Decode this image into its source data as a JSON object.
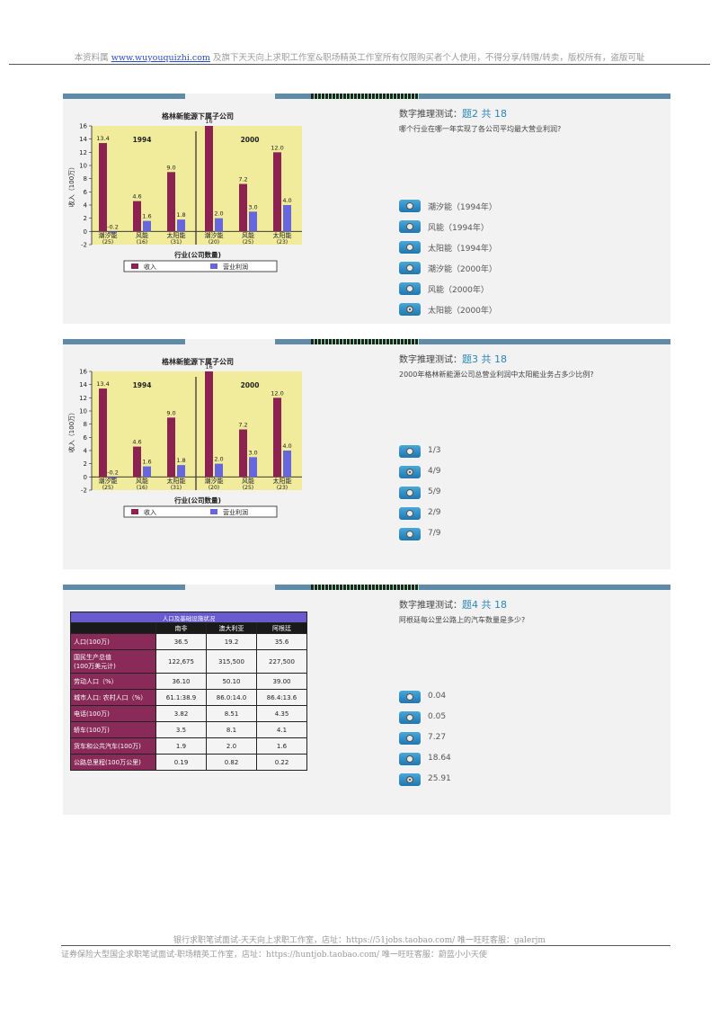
{
  "header": {
    "prefix": "本资料属",
    "link": "www.wuyouquizhi.com",
    "suffix": "及旗下天天向上求职工作室&职场精英工作室所有仅限购买者个人使用，不得分享/转赠/转卖，版权所有，盗版可耻"
  },
  "chart": {
    "title": "格林新能源下属子公司",
    "ylabel": "收入（100万）",
    "xlabel": "行业(公司数量)",
    "legend_income": "收入",
    "legend_profit": "营业利润",
    "y_ticks": [
      "16",
      "14",
      "12",
      "10",
      "8",
      "6",
      "4",
      "2",
      "0",
      "-2"
    ],
    "year_1994": "1994",
    "year_2000": "2000",
    "colors": {
      "income": "#8b2252",
      "profit": "#6666dd",
      "bg": "#f0ec9c"
    }
  },
  "chart_data": {
    "type": "bar",
    "title": "格林新能源下属子公司",
    "xlabel": "行业(公司数量)",
    "ylabel": "收入（100万）",
    "ylim": [
      -2,
      16
    ],
    "categories": [
      "潮汐能",
      "风能",
      "太阳能",
      "潮汐能",
      "风能",
      "太阳能"
    ],
    "category_counts": [
      "(25)",
      "(16)",
      "(31)",
      "(20)",
      "(25)",
      "(23)"
    ],
    "groups": [
      "1994",
      "1994",
      "1994",
      "2000",
      "2000",
      "2000"
    ],
    "series": [
      {
        "name": "收入",
        "values": [
          13.4,
          4.6,
          9.0,
          16,
          7.2,
          12.0
        ],
        "labels": [
          "13.4",
          "4.6",
          "9.0",
          "16",
          "7.2",
          "12.0"
        ]
      },
      {
        "name": "营业利润",
        "values": [
          -0.2,
          1.6,
          1.8,
          2.0,
          3.0,
          4.0
        ],
        "labels": [
          "-0.2",
          "1.6",
          "1.8",
          "2.0",
          "3.0",
          "4.0"
        ]
      }
    ]
  },
  "q2": {
    "title": "数字推理测试：",
    "num": "题2 共 18",
    "text": "哪个行业在哪一年实现了各公司平均最大营业利润?",
    "options": [
      "潮汐能（1994年）",
      "风能（1994年）",
      "太阳能（1994年）",
      "潮汐能（2000年）",
      "风能（2000年）",
      "太阳能（2000年）"
    ],
    "selected": 5
  },
  "q3": {
    "title": "数字推理测试：",
    "num": "题3 共 18",
    "text": "2000年格林新能源公司总营业利润中太阳能业务占多少比例?",
    "options": [
      "1/3",
      "4/9",
      "5/9",
      "2/9",
      "7/9"
    ],
    "selected": 1
  },
  "q4": {
    "title": "数字推理测试：",
    "num": "题4 共 18",
    "text": "阿根廷每公里公路上的汽车数量是多少?",
    "options": [
      "0.04",
      "0.05",
      "7.27",
      "18.64",
      "25.91"
    ],
    "selected": 4
  },
  "table": {
    "caption": "人口及基础设施状况",
    "columns": [
      "南非",
      "澳大利亚",
      "阿根廷"
    ],
    "rows": [
      {
        "label": "人口(100万)",
        "values": [
          "36.5",
          "19.2",
          "35.6"
        ]
      },
      {
        "label": "国民生产总值\n(100万美元计)",
        "values": [
          "122,675",
          "315,500",
          "227,500"
        ]
      },
      {
        "label": "劳动人口（%）",
        "values": [
          "36.10",
          "50.10",
          "39.00"
        ]
      },
      {
        "label": "城市人口: 农村人口（%）",
        "values": [
          "61.1:38.9",
          "86.0:14.0",
          "86.4:13.6"
        ]
      },
      {
        "label": "电话(100万)",
        "values": [
          "3.82",
          "8.51",
          "4.35"
        ]
      },
      {
        "label": "轿车(100万)",
        "values": [
          "3.5",
          "8.1",
          "4.1"
        ]
      },
      {
        "label": "货车和公共汽车(100万)",
        "values": [
          "1.9",
          "2.0",
          "1.6"
        ]
      },
      {
        "label": "公路总里程(100万公里)",
        "values": [
          "0.19",
          "0.82",
          "0.22"
        ]
      }
    ]
  },
  "footer": {
    "line1": "银行求职笔试面试-天天向上求职工作室，店址：https://51jobs.taobao.com/  唯一旺旺客服：galerjm",
    "line2": "证券保险大型国企求职笔试面试-职场精英工作室，店址：https://huntjob.taobao.com/  唯一旺旺客服：蔚蓝小小天使"
  }
}
